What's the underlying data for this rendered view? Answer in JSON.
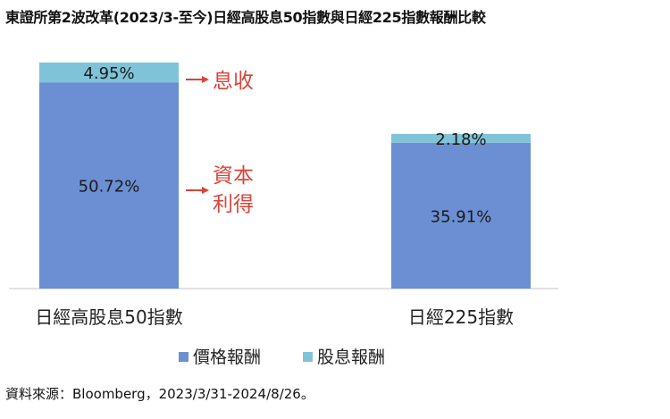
{
  "title": "東證所第2波改革(2023/3-至今)日經高股息50指數與日經225指數報酬比較",
  "source": "資料來源：Bloomberg，2023/3/31-2024/8/26。",
  "chart_data": {
    "type": "bar",
    "stacked": true,
    "categories": [
      "日經高股息50指數",
      "日經225指數"
    ],
    "series": [
      {
        "name": "價格報酬",
        "values": [
          50.72,
          35.91
        ],
        "labels": [
          "50.72%",
          "35.91%"
        ],
        "color": "#6b8fd2"
      },
      {
        "name": "股息報酬",
        "values": [
          4.95,
          2.18
        ],
        "labels": [
          "4.95%",
          "2.18%"
        ],
        "color": "#7fc3d8"
      }
    ],
    "annotations": [
      {
        "text": [
          "息收"
        ],
        "points_to": "股息報酬"
      },
      {
        "text": [
          "資本",
          "利得"
        ],
        "points_to": "價格報酬"
      }
    ],
    "annotation_color": "#d8453a",
    "legend_position": "bottom",
    "grid": false,
    "ylim": [
      0,
      55.67
    ]
  }
}
